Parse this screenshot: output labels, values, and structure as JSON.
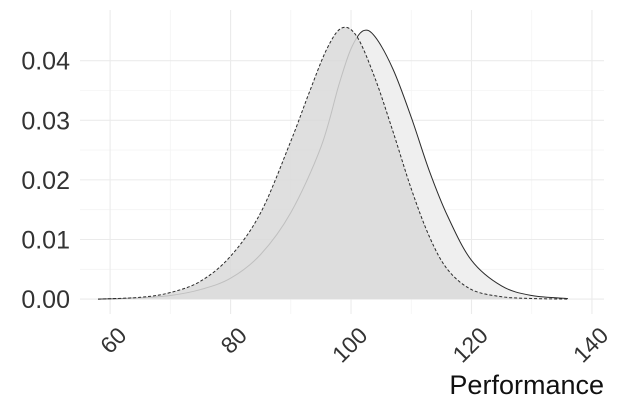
{
  "chart_data": {
    "type": "area",
    "title": "",
    "xlabel": "Performance",
    "ylabel": "",
    "xlim": [
      55,
      142
    ],
    "ylim": [
      -0.0025,
      0.0485
    ],
    "x_ticks": [
      60,
      80,
      100,
      120,
      140
    ],
    "y_ticks": [
      0.0,
      0.01,
      0.02,
      0.03,
      0.04
    ],
    "x_tick_labels": [
      "60",
      "80",
      "100",
      "120",
      "140"
    ],
    "y_tick_labels": [
      "0.00",
      "0.01",
      "0.02",
      "0.03",
      "0.04"
    ],
    "grid": true,
    "legend": "none",
    "series": [
      {
        "line_style": "solid",
        "fill": "#efefef",
        "x": [
          58,
          65,
          70,
          75,
          80,
          85,
          90,
          95,
          98,
          100,
          102,
          104,
          107,
          110,
          113,
          116,
          120,
          125,
          130,
          136
        ],
        "y": [
          0.0,
          0.0002,
          0.0006,
          0.0016,
          0.0035,
          0.0075,
          0.0145,
          0.0255,
          0.036,
          0.042,
          0.045,
          0.044,
          0.0385,
          0.0305,
          0.0215,
          0.014,
          0.0065,
          0.0022,
          0.0006,
          0.0001
        ]
      },
      {
        "line_style": "dashed",
        "fill": "#d9d9d9",
        "x": [
          58,
          65,
          70,
          75,
          80,
          85,
          90,
          93,
          96,
          98.5,
          101,
          104,
          107,
          110,
          113,
          116,
          120,
          125,
          130,
          136
        ],
        "y": [
          0.0,
          0.0003,
          0.0011,
          0.003,
          0.0072,
          0.0145,
          0.0265,
          0.0345,
          0.042,
          0.0455,
          0.044,
          0.037,
          0.028,
          0.0185,
          0.0105,
          0.005,
          0.0016,
          0.0004,
          0.0001,
          0.0
        ]
      }
    ]
  }
}
